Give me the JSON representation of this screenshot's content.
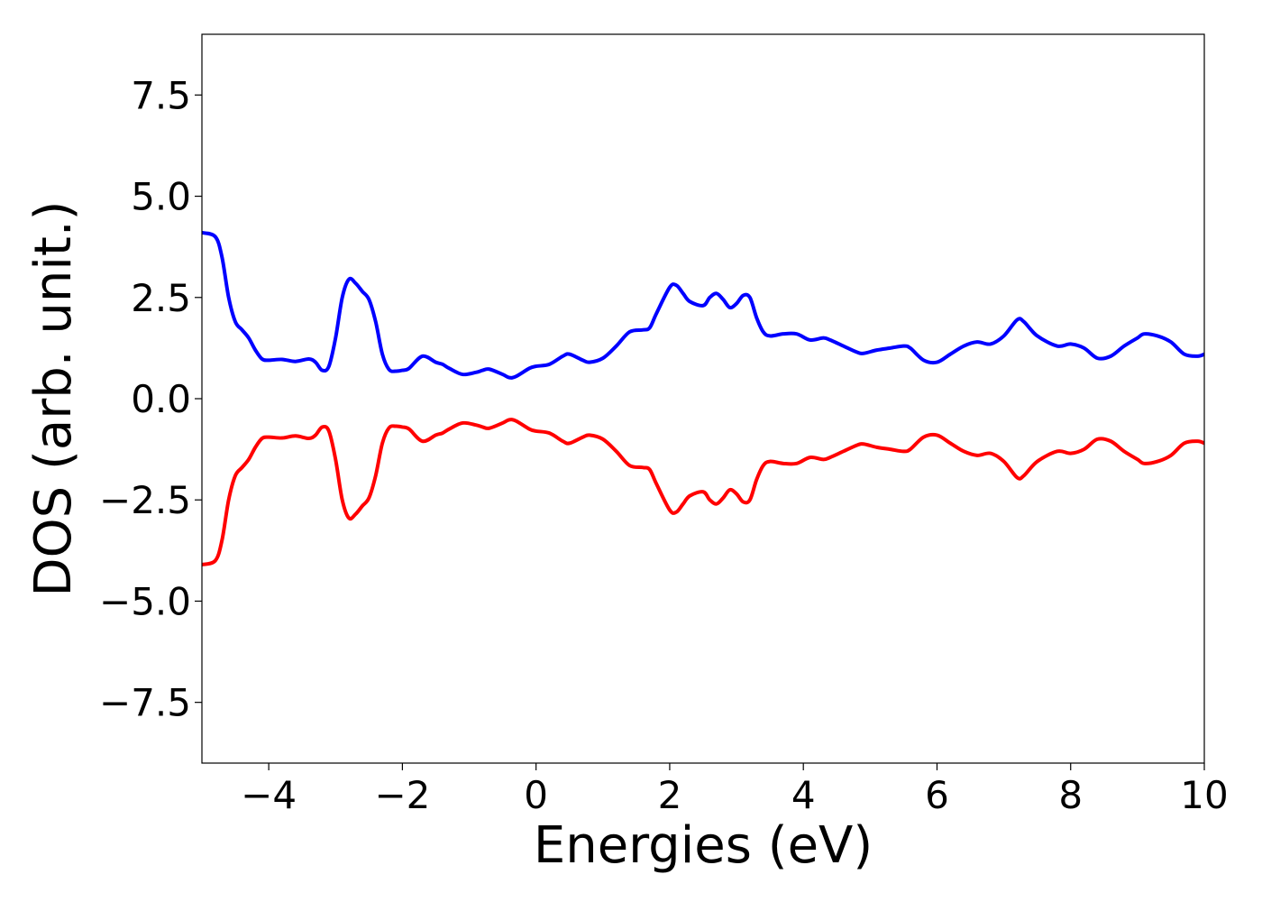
{
  "chart_data": {
    "type": "line",
    "title": "",
    "xlabel": "Energies (eV)",
    "ylabel": "DOS (arb. unit.)",
    "xlim": [
      -5,
      10
    ],
    "ylim": [
      -9,
      9
    ],
    "xticks": [
      -4,
      -2,
      0,
      2,
      4,
      6,
      8,
      10
    ],
    "xtick_labels": [
      "−4",
      "−2",
      "0",
      "2",
      "4",
      "6",
      "8",
      "10"
    ],
    "yticks": [
      -7.5,
      -5.0,
      -2.5,
      0.0,
      2.5,
      5.0,
      7.5
    ],
    "ytick_labels": [
      "−7.5",
      "−5.0",
      "−2.5",
      "0.0",
      "2.5",
      "5.0",
      "7.5"
    ],
    "grid": false,
    "legend": "none",
    "series": [
      {
        "color": "#0000ff",
        "x": [
          -5.0,
          -4.8,
          -4.7,
          -4.6,
          -4.5,
          -4.4,
          -4.3,
          -4.2,
          -4.1,
          -4.0,
          -3.8,
          -3.6,
          -3.4,
          -3.3,
          -3.2,
          -3.1,
          -3.0,
          -2.9,
          -2.8,
          -2.7,
          -2.6,
          -2.5,
          -2.4,
          -2.3,
          -2.2,
          -2.1,
          -2.0,
          -1.9,
          -1.7,
          -1.5,
          -1.4,
          -1.3,
          -1.1,
          -0.9,
          -0.8,
          -0.7,
          -0.5,
          -0.4,
          -0.3,
          -0.1,
          0.0,
          0.2,
          0.4,
          0.5,
          0.7,
          0.8,
          1.0,
          1.2,
          1.4,
          1.6,
          1.7,
          1.8,
          2.0,
          2.1,
          2.2,
          2.3,
          2.5,
          2.6,
          2.7,
          2.8,
          2.9,
          3.0,
          3.1,
          3.2,
          3.3,
          3.4,
          3.5,
          3.7,
          3.9,
          4.1,
          4.3,
          4.4,
          4.6,
          4.8,
          4.9,
          5.1,
          5.3,
          5.5,
          5.6,
          5.8,
          6.0,
          6.2,
          6.4,
          6.6,
          6.8,
          7.0,
          7.2,
          7.3,
          7.5,
          7.8,
          8.0,
          8.2,
          8.4,
          8.6,
          8.8,
          9.0,
          9.1,
          9.3,
          9.5,
          9.7,
          9.9,
          10.0
        ],
        "y": [
          4.1,
          4.0,
          3.5,
          2.5,
          1.9,
          1.7,
          1.5,
          1.2,
          0.98,
          0.95,
          0.97,
          0.92,
          0.98,
          0.9,
          0.7,
          0.8,
          1.5,
          2.5,
          2.95,
          2.85,
          2.65,
          2.45,
          1.9,
          1.1,
          0.72,
          0.68,
          0.7,
          0.75,
          1.05,
          0.9,
          0.85,
          0.75,
          0.6,
          0.65,
          0.7,
          0.73,
          0.6,
          0.52,
          0.55,
          0.75,
          0.8,
          0.85,
          1.05,
          1.1,
          0.95,
          0.9,
          1.0,
          1.3,
          1.65,
          1.7,
          1.75,
          2.1,
          2.75,
          2.8,
          2.6,
          2.4,
          2.3,
          2.5,
          2.6,
          2.45,
          2.25,
          2.35,
          2.55,
          2.5,
          2.0,
          1.65,
          1.55,
          1.6,
          1.6,
          1.45,
          1.5,
          1.45,
          1.3,
          1.15,
          1.12,
          1.2,
          1.25,
          1.3,
          1.25,
          0.95,
          0.9,
          1.1,
          1.3,
          1.4,
          1.35,
          1.55,
          1.95,
          1.9,
          1.55,
          1.3,
          1.35,
          1.25,
          1.0,
          1.05,
          1.3,
          1.5,
          1.6,
          1.55,
          1.4,
          1.1,
          1.05,
          1.1
        ]
      },
      {
        "color": "#ff0000",
        "x": [
          -5.0,
          -4.8,
          -4.7,
          -4.6,
          -4.5,
          -4.4,
          -4.3,
          -4.2,
          -4.1,
          -4.0,
          -3.8,
          -3.6,
          -3.4,
          -3.3,
          -3.2,
          -3.1,
          -3.0,
          -2.9,
          -2.8,
          -2.7,
          -2.6,
          -2.5,
          -2.4,
          -2.3,
          -2.2,
          -2.1,
          -2.0,
          -1.9,
          -1.7,
          -1.5,
          -1.4,
          -1.3,
          -1.1,
          -0.9,
          -0.8,
          -0.7,
          -0.5,
          -0.4,
          -0.3,
          -0.1,
          0.0,
          0.2,
          0.4,
          0.5,
          0.7,
          0.8,
          1.0,
          1.2,
          1.4,
          1.6,
          1.7,
          1.8,
          2.0,
          2.1,
          2.2,
          2.3,
          2.5,
          2.6,
          2.7,
          2.8,
          2.9,
          3.0,
          3.1,
          3.2,
          3.3,
          3.4,
          3.5,
          3.7,
          3.9,
          4.1,
          4.3,
          4.4,
          4.6,
          4.8,
          4.9,
          5.1,
          5.3,
          5.5,
          5.6,
          5.8,
          6.0,
          6.2,
          6.4,
          6.6,
          6.8,
          7.0,
          7.2,
          7.3,
          7.5,
          7.8,
          8.0,
          8.2,
          8.4,
          8.6,
          8.8,
          9.0,
          9.1,
          9.3,
          9.5,
          9.7,
          9.9,
          10.0
        ],
        "y": [
          -4.1,
          -4.0,
          -3.5,
          -2.5,
          -1.9,
          -1.7,
          -1.5,
          -1.2,
          -0.98,
          -0.95,
          -0.97,
          -0.92,
          -0.98,
          -0.9,
          -0.7,
          -0.8,
          -1.5,
          -2.5,
          -2.95,
          -2.85,
          -2.65,
          -2.45,
          -1.9,
          -1.1,
          -0.72,
          -0.68,
          -0.7,
          -0.75,
          -1.05,
          -0.9,
          -0.85,
          -0.75,
          -0.6,
          -0.65,
          -0.7,
          -0.73,
          -0.6,
          -0.52,
          -0.55,
          -0.75,
          -0.8,
          -0.85,
          -1.05,
          -1.1,
          -0.95,
          -0.9,
          -1.0,
          -1.3,
          -1.65,
          -1.7,
          -1.75,
          -2.1,
          -2.75,
          -2.8,
          -2.6,
          -2.4,
          -2.3,
          -2.5,
          -2.6,
          -2.45,
          -2.25,
          -2.35,
          -2.55,
          -2.5,
          -2.0,
          -1.65,
          -1.55,
          -1.6,
          -1.6,
          -1.45,
          -1.5,
          -1.45,
          -1.3,
          -1.15,
          -1.12,
          -1.2,
          -1.25,
          -1.3,
          -1.25,
          -0.95,
          -0.9,
          -1.1,
          -1.3,
          -1.4,
          -1.35,
          -1.55,
          -1.95,
          -1.9,
          -1.55,
          -1.3,
          -1.35,
          -1.25,
          -1.0,
          -1.05,
          -1.3,
          -1.5,
          -1.6,
          -1.55,
          -1.4,
          -1.1,
          -1.05,
          -1.1
        ]
      }
    ]
  }
}
